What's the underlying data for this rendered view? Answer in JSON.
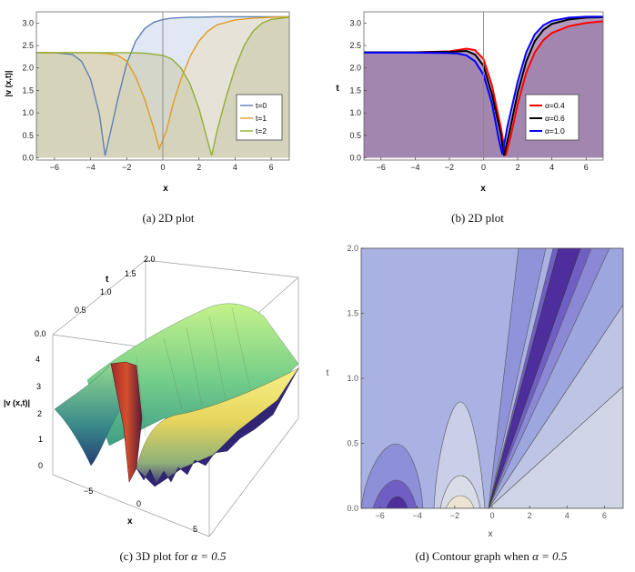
{
  "chart_data": [
    {
      "id": "a",
      "type": "line",
      "caption": "(a)  2D plot",
      "xlabel": "x",
      "ylabel": "|v (x,t)|",
      "xlim": [
        -7,
        7
      ],
      "ylim": [
        -0.05,
        3.25
      ],
      "xticks": [
        -6,
        -4,
        -2,
        0,
        2,
        4,
        6
      ],
      "xtick_labels": [
        "−6",
        "−4",
        "−2",
        "0",
        "2",
        "4",
        "6"
      ],
      "yticks": [
        0,
        0.5,
        1,
        1.5,
        2,
        2.5,
        3
      ],
      "ytick_labels": [
        "0.0",
        "0.5",
        "1.0",
        "1.5",
        "2.0",
        "2.5",
        "3.0"
      ],
      "series": [
        {
          "name": "t=0",
          "color": "#5e81b5",
          "fill": "#c9d5e9",
          "x": [
            -7,
            -6,
            -5,
            -4.5,
            -4,
            -3.5,
            -3.2,
            -2.8,
            -2.5,
            -2,
            -1.5,
            -1,
            -0.5,
            0,
            0.5,
            1,
            1.5,
            2,
            3,
            4,
            5,
            7
          ],
          "y": [
            2.34,
            2.34,
            2.3,
            2.15,
            1.75,
            0.95,
            0.05,
            0.75,
            1.3,
            2.1,
            2.6,
            2.88,
            3.02,
            3.08,
            3.11,
            3.12,
            3.13,
            3.13,
            3.14,
            3.14,
            3.14,
            3.14
          ]
        },
        {
          "name": "t=1",
          "color": "#e19c24",
          "fill": "#ecdcc0",
          "x": [
            -7,
            -5,
            -4,
            -3,
            -2.5,
            -2,
            -1.5,
            -1,
            -0.5,
            -0.2,
            0.2,
            0.6,
            1,
            1.5,
            2,
            2.5,
            3,
            4,
            5,
            6,
            7
          ],
          "y": [
            2.34,
            2.34,
            2.34,
            2.32,
            2.28,
            2.15,
            1.8,
            1.3,
            0.65,
            0.2,
            0.6,
            1.25,
            1.75,
            2.25,
            2.6,
            2.82,
            2.96,
            3.07,
            3.11,
            3.13,
            3.14
          ]
        },
        {
          "name": "t=2",
          "color": "#8fb032",
          "fill": "#c9c7a5",
          "x": [
            -7,
            -4,
            -2,
            -1,
            0,
            0.5,
            1,
            1.5,
            2,
            2.5,
            2.7,
            3,
            3.5,
            4,
            4.5,
            5,
            5.5,
            6,
            7
          ],
          "y": [
            2.34,
            2.34,
            2.34,
            2.33,
            2.28,
            2.2,
            2.0,
            1.65,
            1.1,
            0.35,
            0.05,
            0.6,
            1.35,
            2.0,
            2.5,
            2.82,
            3.0,
            3.08,
            3.13
          ]
        }
      ],
      "legend": [
        "t=0",
        "t=1",
        "t=2"
      ],
      "legend_position": "lower-right"
    },
    {
      "id": "b",
      "type": "line",
      "caption": "(b)  2D plot",
      "xlabel": "x",
      "ylabel": "t",
      "xlim": [
        -7,
        7
      ],
      "ylim": [
        -0.05,
        3.25
      ],
      "xticks": [
        -6,
        -4,
        -2,
        0,
        2,
        4,
        6
      ],
      "xtick_labels": [
        "−6",
        "−4",
        "−2",
        "0",
        "2",
        "4",
        "6"
      ],
      "yticks": [
        0,
        0.5,
        1,
        1.5,
        2,
        2.5,
        3
      ],
      "ytick_labels": [
        "0.0",
        "0.5",
        "1.0",
        "1.5",
        "2.0",
        "2.5",
        "3.0"
      ],
      "fill_color": "#8d6a9e",
      "series": [
        {
          "name": "α=0.4",
          "color": "#ff0000",
          "x": [
            -7,
            -4,
            -2,
            -1.5,
            -1,
            -0.5,
            0,
            0.5,
            1,
            1.3,
            1.6,
            2,
            2.5,
            3,
            3.5,
            4,
            5,
            6,
            7
          ],
          "y": [
            2.35,
            2.35,
            2.37,
            2.4,
            2.43,
            2.4,
            2.2,
            1.6,
            0.7,
            0.05,
            0.5,
            1.2,
            1.9,
            2.35,
            2.62,
            2.78,
            2.93,
            3.0,
            3.04
          ]
        },
        {
          "name": "α=0.6",
          "color": "#000000",
          "x": [
            -7,
            -4,
            -2,
            -1.5,
            -1,
            -0.5,
            0,
            0.5,
            1,
            1.2,
            1.5,
            2,
            2.5,
            3,
            3.5,
            4,
            5,
            6,
            7
          ],
          "y": [
            2.35,
            2.35,
            2.36,
            2.37,
            2.38,
            2.3,
            2.05,
            1.4,
            0.55,
            0.05,
            0.55,
            1.45,
            2.15,
            2.6,
            2.85,
            2.98,
            3.08,
            3.12,
            3.13
          ]
        },
        {
          "name": "α=1.0",
          "color": "#0000ff",
          "x": [
            -7,
            -4,
            -2,
            -1.5,
            -1,
            -0.5,
            0,
            0.5,
            0.9,
            1.1,
            1.4,
            2,
            2.5,
            3,
            3.5,
            4,
            5,
            6,
            7
          ],
          "y": [
            2.34,
            2.34,
            2.33,
            2.32,
            2.28,
            2.15,
            1.85,
            1.2,
            0.4,
            0.08,
            0.7,
            1.7,
            2.35,
            2.75,
            2.95,
            3.05,
            3.12,
            3.14,
            3.14
          ]
        }
      ],
      "legend": [
        "α=0.4",
        "α=0.6",
        "α=1.0"
      ],
      "legend_position": "lower-right"
    },
    {
      "id": "c",
      "type": "surface",
      "caption_prefix": "(c)  3D plot for ",
      "caption_alpha": "α = 0.5",
      "xlabel": "x",
      "ylabel": "t",
      "zlabel": "|v (x,t)|",
      "x_ticks": [
        "−5",
        "0",
        "5"
      ],
      "t_ticks": [
        "0.0",
        "0.5",
        "1.0",
        "1.5",
        "2.0"
      ],
      "z_ticks": [
        "0",
        "1",
        "2",
        "3",
        "4"
      ],
      "xlim": [
        -7,
        7
      ],
      "tlim": [
        0,
        2
      ],
      "zlim": [
        0,
        4.3
      ]
    },
    {
      "id": "d",
      "type": "contour",
      "caption_prefix": "(d)  Contour graph when ",
      "caption_alpha": "α = 0.5",
      "xlabel": "x",
      "ylabel": "t",
      "xlim": [
        -7,
        7
      ],
      "ylim": [
        0,
        2
      ],
      "xticks": [
        -6,
        -4,
        -2,
        0,
        2,
        4,
        6
      ],
      "xtick_labels": [
        "−6",
        "−4",
        "−2",
        "0",
        "2",
        "4",
        "6"
      ],
      "yticks": [
        0,
        0.5,
        1,
        1.5,
        2
      ],
      "ytick_labels": [
        "0.0",
        "0.5",
        "1.0",
        "1.5",
        "2.0"
      ],
      "palette": [
        "#cfd5e6",
        "#b2b9e2",
        "#9ea6df",
        "#8b88d6",
        "#6f5fc4",
        "#4d2e9c"
      ]
    }
  ]
}
